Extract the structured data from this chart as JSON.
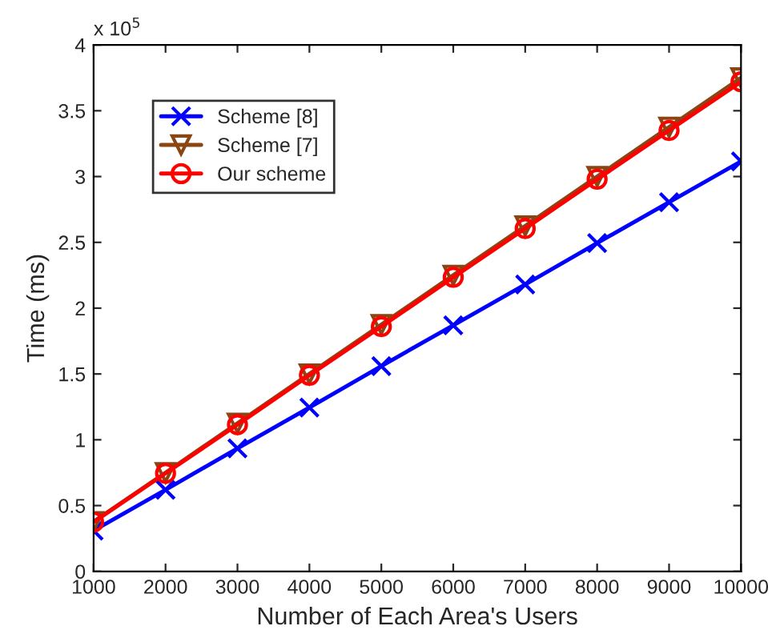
{
  "chart_data": {
    "type": "line",
    "xlabel": "Number of Each Area's Users",
    "ylabel": "Time (ms)",
    "annotations": [
      "x 10$^{5}$"
    ],
    "x": [
      1000,
      2000,
      3000,
      4000,
      5000,
      6000,
      7000,
      8000,
      9000,
      10000
    ],
    "series": [
      {
        "name": "Scheme [8]",
        "color": "#0000ff",
        "marker": "cross",
        "values": [
          0.31,
          0.62,
          0.935,
          1.245,
          1.56,
          1.87,
          2.18,
          2.495,
          2.805,
          3.115
        ]
      },
      {
        "name": "Scheme [7]",
        "color": "#8b4513",
        "marker": "triangle",
        "values": [
          0.377,
          0.75,
          1.125,
          1.5,
          1.875,
          2.25,
          2.625,
          3.0,
          3.375,
          3.75
        ]
      },
      {
        "name": "Our scheme",
        "color": "#ff0000",
        "marker": "circle",
        "values": [
          0.375,
          0.745,
          1.115,
          1.49,
          1.86,
          2.235,
          2.605,
          2.98,
          3.35,
          3.72
        ]
      }
    ],
    "xlim": [
      1000,
      10000
    ],
    "xticks": [
      1000,
      2000,
      3000,
      4000,
      5000,
      6000,
      7000,
      8000,
      9000,
      10000
    ],
    "ylim": [
      0,
      4
    ],
    "yticks": [
      0,
      0.5,
      1,
      1.5,
      2,
      2.5,
      3,
      3.5,
      4
    ],
    "grid": false,
    "legend": "top left",
    "line_style": "solid"
  }
}
